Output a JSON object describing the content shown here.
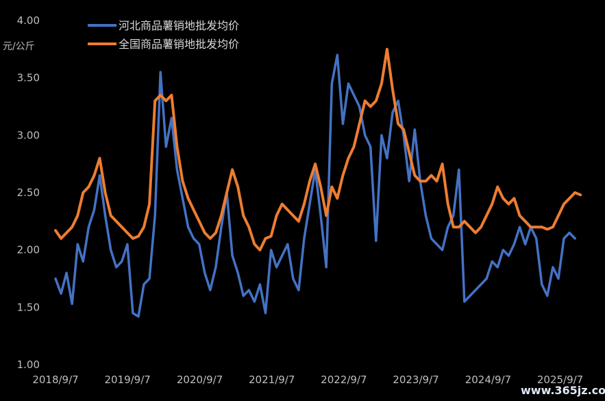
{
  "chart_data": {
    "type": "line",
    "unit_label": "元/公斤",
    "ylim": [
      1.0,
      4.0
    ],
    "yticks": [
      "1.00",
      "1.50",
      "2.00",
      "2.50",
      "3.00",
      "3.50",
      "4.00"
    ],
    "xticks": [
      "2018/9/7",
      "2019/9/7",
      "2020/9/7",
      "2021/9/7",
      "2022/9/7",
      "2023/9/7",
      "2024/9/7",
      "2025/9/7"
    ],
    "xrange": [
      "2018/9/7",
      "2026/1/15"
    ],
    "grid": false,
    "legend_position": "top-left",
    "series": [
      {
        "name": "河北商品薯销地批发均价",
        "color": "#4472C4",
        "x": [
          "2018/9/7",
          "2018/10/5",
          "2018/11/2",
          "2018/11/30",
          "2018/12/28",
          "2019/1/25",
          "2019/2/22",
          "2019/3/22",
          "2019/4/19",
          "2019/5/17",
          "2019/6/14",
          "2019/7/12",
          "2019/8/9",
          "2019/9/6",
          "2019/10/4",
          "2019/11/1",
          "2019/11/29",
          "2019/12/27",
          "2020/1/24",
          "2020/2/21",
          "2020/3/20",
          "2020/4/17",
          "2020/5/15",
          "2020/6/12",
          "2020/7/10",
          "2020/8/7",
          "2020/9/4",
          "2020/10/2",
          "2020/10/30",
          "2020/11/27",
          "2020/12/25",
          "2021/1/22",
          "2021/2/19",
          "2021/3/19",
          "2021/4/16",
          "2021/5/14",
          "2021/6/11",
          "2021/7/9",
          "2021/8/6",
          "2021/9/3",
          "2021/10/1",
          "2021/10/29",
          "2021/11/26",
          "2021/12/24",
          "2022/1/21",
          "2022/2/18",
          "2022/3/18",
          "2022/4/15",
          "2022/5/13",
          "2022/6/10",
          "2022/7/8",
          "2022/8/5",
          "2022/9/2",
          "2022/9/30",
          "2022/10/28",
          "2022/11/25",
          "2022/12/23",
          "2023/1/20",
          "2023/2/17",
          "2023/3/17",
          "2023/4/14",
          "2023/5/12",
          "2023/6/9",
          "2023/7/7",
          "2023/8/4",
          "2023/9/1",
          "2023/9/29",
          "2023/10/27",
          "2023/11/24",
          "2023/12/22",
          "2024/1/19",
          "2024/2/16",
          "2024/3/15",
          "2024/4/12",
          "2024/5/10",
          "2024/6/7",
          "2024/7/5",
          "2024/8/2",
          "2024/8/30",
          "2024/9/27",
          "2024/10/25",
          "2024/11/22",
          "2024/12/20",
          "2025/1/17",
          "2025/2/14",
          "2025/3/14",
          "2025/4/11",
          "2025/5/9",
          "2025/6/6",
          "2025/7/4",
          "2025/8/1",
          "2025/8/29",
          "2025/9/26",
          "2025/10/24",
          "2025/11/21"
        ],
        "values": [
          1.75,
          1.62,
          1.8,
          1.53,
          2.05,
          1.9,
          2.2,
          2.35,
          2.65,
          2.3,
          2.0,
          1.85,
          1.9,
          2.05,
          1.45,
          1.42,
          1.7,
          1.75,
          2.3,
          3.55,
          2.9,
          3.15,
          2.7,
          2.45,
          2.2,
          2.1,
          2.05,
          1.8,
          1.65,
          1.85,
          2.2,
          2.5,
          1.95,
          1.8,
          1.6,
          1.65,
          1.55,
          1.7,
          1.45,
          2.0,
          1.85,
          1.95,
          2.05,
          1.75,
          1.65,
          2.1,
          2.4,
          2.7,
          2.3,
          1.85,
          3.45,
          3.7,
          3.1,
          3.45,
          3.35,
          3.25,
          3.0,
          2.9,
          2.08,
          3.0,
          2.8,
          3.2,
          3.3,
          3.0,
          2.6,
          3.05,
          2.6,
          2.3,
          2.1,
          2.05,
          2.0,
          2.2,
          2.3,
          2.7,
          1.55,
          1.6,
          1.65,
          1.7,
          1.75,
          1.9,
          1.85,
          2.0,
          1.95,
          2.05,
          2.2,
          2.05,
          2.2,
          2.1,
          1.7,
          1.6,
          1.85,
          1.75,
          2.1,
          2.15,
          2.1
        ]
      },
      {
        "name": "全国商品薯销地批发均价",
        "color": "#ED7D31",
        "x": [
          "2018/9/7",
          "2018/10/5",
          "2018/11/2",
          "2018/11/30",
          "2018/12/28",
          "2019/1/25",
          "2019/2/22",
          "2019/3/22",
          "2019/4/19",
          "2019/5/17",
          "2019/6/14",
          "2019/7/12",
          "2019/8/9",
          "2019/9/6",
          "2019/10/4",
          "2019/11/1",
          "2019/11/29",
          "2019/12/27",
          "2020/1/24",
          "2020/2/21",
          "2020/3/20",
          "2020/4/17",
          "2020/5/15",
          "2020/6/12",
          "2020/7/10",
          "2020/8/7",
          "2020/9/4",
          "2020/10/2",
          "2020/10/30",
          "2020/11/27",
          "2020/12/25",
          "2021/1/22",
          "2021/2/19",
          "2021/3/19",
          "2021/4/16",
          "2021/5/14",
          "2021/6/11",
          "2021/7/9",
          "2021/8/6",
          "2021/9/3",
          "2021/10/1",
          "2021/10/29",
          "2021/11/26",
          "2021/12/24",
          "2022/1/21",
          "2022/2/18",
          "2022/3/18",
          "2022/4/15",
          "2022/5/13",
          "2022/6/10",
          "2022/7/8",
          "2022/8/5",
          "2022/9/2",
          "2022/9/30",
          "2022/10/28",
          "2022/11/25",
          "2022/12/23",
          "2023/1/20",
          "2023/2/17",
          "2023/3/17",
          "2023/4/14",
          "2023/5/12",
          "2023/6/9",
          "2023/7/7",
          "2023/8/4",
          "2023/9/1",
          "2023/9/29",
          "2023/10/27",
          "2023/11/24",
          "2023/12/22",
          "2024/1/19",
          "2024/2/16",
          "2024/3/15",
          "2024/4/12",
          "2024/5/10",
          "2024/6/7",
          "2024/7/5",
          "2024/8/2",
          "2024/8/30",
          "2024/9/27",
          "2024/10/25",
          "2024/11/22",
          "2024/12/20",
          "2025/1/17",
          "2025/2/14",
          "2025/3/14",
          "2025/4/11",
          "2025/5/9",
          "2025/6/6",
          "2025/7/4",
          "2025/8/1",
          "2025/8/29",
          "2025/9/26",
          "2025/10/24",
          "2025/11/21",
          "2025/12/19"
        ],
        "values": [
          2.17,
          2.1,
          2.15,
          2.2,
          2.3,
          2.5,
          2.55,
          2.65,
          2.8,
          2.5,
          2.3,
          2.25,
          2.2,
          2.15,
          2.1,
          2.12,
          2.2,
          2.4,
          3.3,
          3.35,
          3.3,
          3.35,
          2.9,
          2.6,
          2.45,
          2.35,
          2.25,
          2.15,
          2.1,
          2.15,
          2.3,
          2.5,
          2.7,
          2.55,
          2.3,
          2.2,
          2.05,
          2.0,
          2.1,
          2.12,
          2.3,
          2.4,
          2.35,
          2.3,
          2.25,
          2.4,
          2.6,
          2.75,
          2.55,
          2.3,
          2.55,
          2.45,
          2.65,
          2.8,
          2.9,
          3.1,
          3.3,
          3.25,
          3.3,
          3.45,
          3.75,
          3.4,
          3.1,
          3.05,
          2.85,
          2.65,
          2.6,
          2.6,
          2.65,
          2.6,
          2.75,
          2.4,
          2.2,
          2.2,
          2.25,
          2.2,
          2.15,
          2.2,
          2.3,
          2.4,
          2.55,
          2.45,
          2.4,
          2.45,
          2.3,
          2.25,
          2.2,
          2.2,
          2.2,
          2.18,
          2.2,
          2.3,
          2.4,
          2.45,
          2.5,
          2.48
        ]
      }
    ]
  },
  "watermark": "www.365jz.com"
}
